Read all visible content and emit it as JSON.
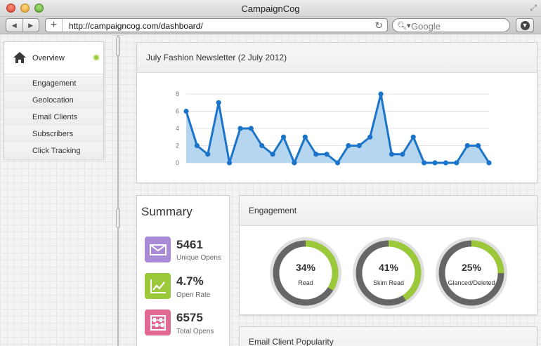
{
  "window": {
    "title": "CampaignCog",
    "url": "http://campaigncog.com/dashboard/",
    "search_placeholder": "Google"
  },
  "sidebar": {
    "overview": "Overview",
    "items": [
      "Engagement",
      "Geolocation",
      "Email Clients",
      "Subscribers",
      "Click Tracking"
    ]
  },
  "chart_panel": {
    "title": "July Fashion Newsletter (2 July 2012)"
  },
  "chart_data": {
    "type": "area",
    "title": "July Fashion Newsletter (2 July 2012)",
    "xlabel": "",
    "ylabel": "",
    "ylim": [
      0,
      8
    ],
    "yticks": [
      0,
      2,
      4,
      6,
      8
    ],
    "grid": true,
    "series": [
      {
        "values": [
          6,
          2,
          1,
          7,
          0,
          4,
          4,
          2,
          1,
          3,
          0,
          3,
          1,
          1,
          0,
          2,
          2,
          3,
          8,
          1,
          1,
          3,
          0,
          0,
          0,
          0,
          2,
          2,
          0
        ]
      }
    ],
    "colors": {
      "line": "#1a74c9",
      "fill": "#b6d6f0",
      "point": "#1a74c9"
    }
  },
  "summary": {
    "title": "Summary",
    "stats": [
      {
        "value": "5461",
        "label": "Unique Opens",
        "icon": "envelope-icon",
        "color": "#a98ad6"
      },
      {
        "value": "4.7%",
        "label": "Open Rate",
        "icon": "line-chart-icon",
        "color": "#9cc93a"
      },
      {
        "value": "6575",
        "label": "Total Opens",
        "icon": "abacus-icon",
        "color": "#e06a93"
      }
    ]
  },
  "engagement": {
    "title": "Engagement",
    "gauges": [
      {
        "percent": 34,
        "pct_label": "34%",
        "label": "Read"
      },
      {
        "percent": 41,
        "pct_label": "41%",
        "label": "Skim Read"
      },
      {
        "percent": 25,
        "pct_label": "25%",
        "label": "Glanced/Deleted"
      }
    ],
    "colors": {
      "accent": "#9cc93a",
      "track": "#666666",
      "outer": "#e0e0e0"
    }
  },
  "email_clients": {
    "title": "Email Client Popularity"
  }
}
